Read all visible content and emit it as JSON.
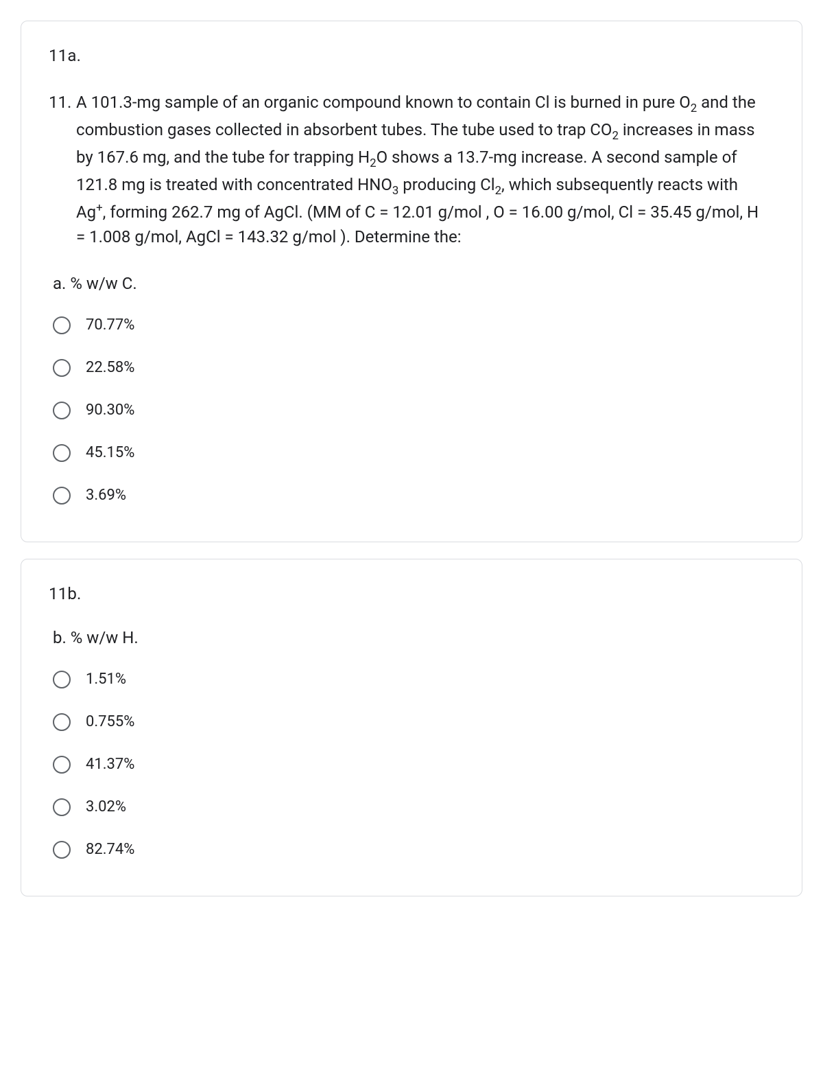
{
  "card1": {
    "header": "11a.",
    "question_number": "11.",
    "question_text": "A 101.3-mg sample of an organic compound known to contain Cl is burned in pure O₂ and the combustion gases collected in absorbent tubes. The tube used to trap CO₂ increases in mass by 167.6 mg, and the tube for trapping H₂O shows a 13.7-mg increase. A second sample of 121.8 mg is treated with concentrated HNO₃ producing Cl₂, which subsequently reacts with Ag⁺, forming 262.7 mg of AgCl. (MM of C = 12.01 g/mol , O = 16.00 g/mol, Cl = 35.45 g/mol, H = 1.008 g/mol, AgCl = 143.32 g/mol ). Determine the:",
    "sub_label": "a. % w/w C.",
    "options": [
      "70.77%",
      "22.58%",
      "90.30%",
      "45.15%",
      "3.69%"
    ]
  },
  "card2": {
    "header": "11b.",
    "sub_label": "b. % w/w H.",
    "options": [
      "1.51%",
      "0.755%",
      "41.37%",
      "3.02%",
      "82.74%"
    ]
  },
  "colors": {
    "border": "#dadce0",
    "text": "#202124",
    "radio_border": "#5f6368",
    "background": "#ffffff"
  }
}
